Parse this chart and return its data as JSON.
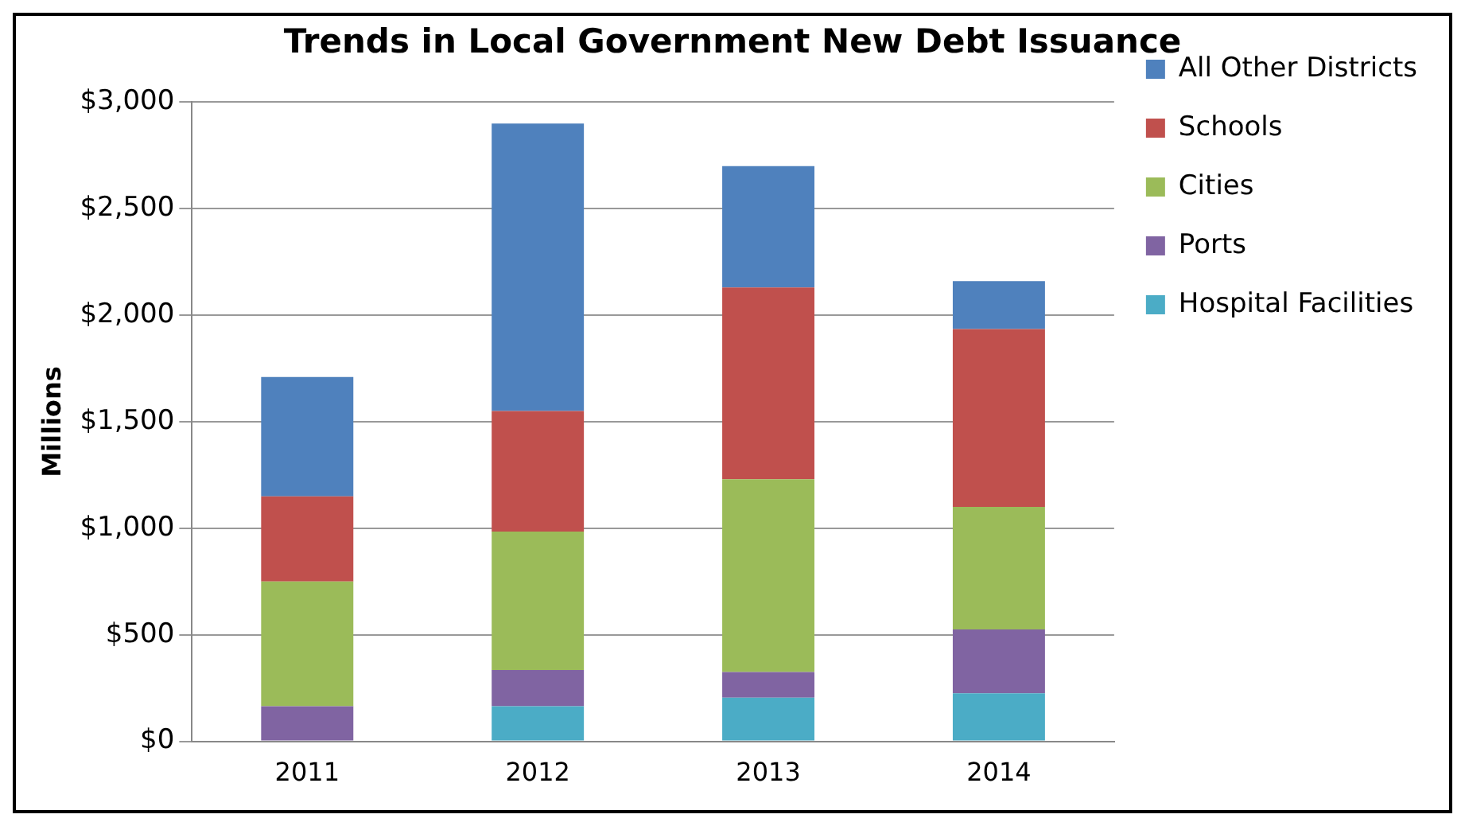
{
  "chart_data": {
    "type": "bar",
    "title": "Trends in Local Government New Debt Issuance",
    "ylabel": "Millions",
    "categories": [
      "2011",
      "2012",
      "2013",
      "2014"
    ],
    "stacked": true,
    "legend": "right",
    "grid": "y",
    "ylim": [
      0,
      3000
    ],
    "yticks": [
      {
        "value": 0,
        "label": "$0"
      },
      {
        "value": 500,
        "label": "$500"
      },
      {
        "value": 1000,
        "label": "$1,000"
      },
      {
        "value": 1500,
        "label": "$1,500"
      },
      {
        "value": 2000,
        "label": "$2,000"
      },
      {
        "value": 2500,
        "label": "$2,500"
      },
      {
        "value": 3000,
        "label": "$3,000"
      }
    ],
    "series": [
      {
        "name": "Hospital Facilities",
        "color": "#4bacc6",
        "values": [
          0,
          165,
          205,
          225
        ]
      },
      {
        "name": "Ports",
        "color": "#8064a2",
        "values": [
          165,
          170,
          120,
          300
        ]
      },
      {
        "name": "Cities",
        "color": "#9bbb59",
        "values": [
          585,
          650,
          905,
          575
        ]
      },
      {
        "name": "Schools",
        "color": "#c0504d",
        "values": [
          400,
          565,
          900,
          835
        ]
      },
      {
        "name": "All Other Districts",
        "color": "#4f81bd",
        "values": [
          560,
          1350,
          570,
          225
        ]
      }
    ]
  }
}
